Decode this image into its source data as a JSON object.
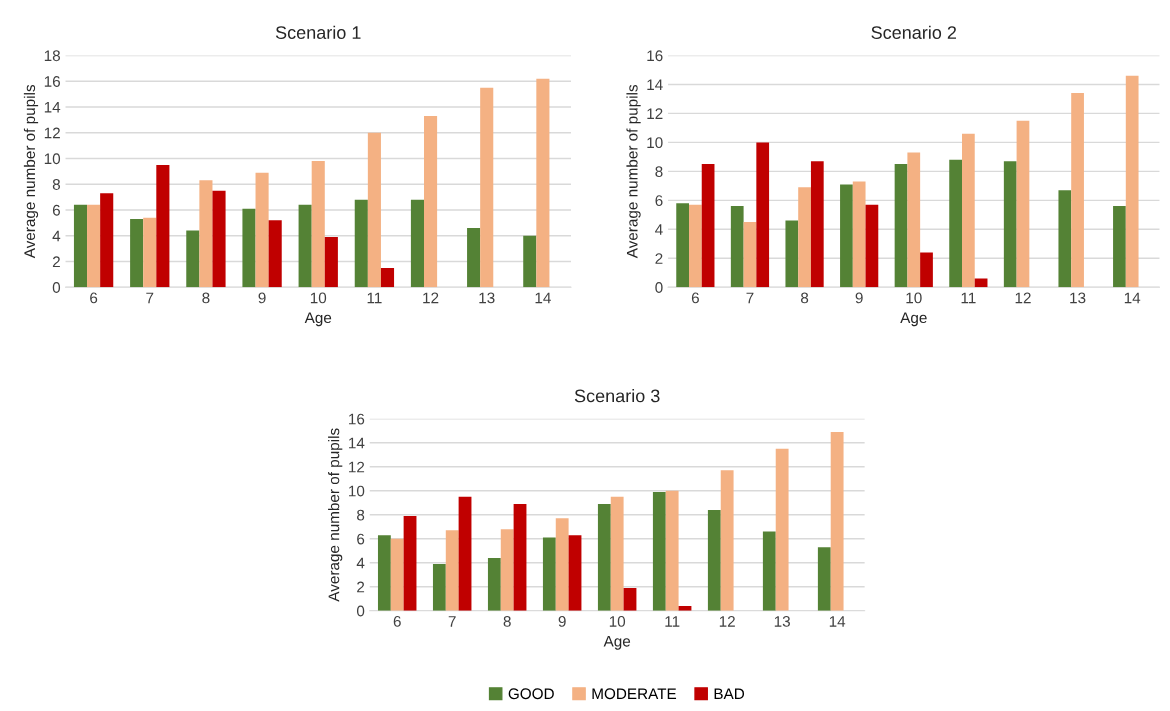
{
  "chart_data": [
    {
      "type": "bar",
      "title": "Scenario 1",
      "xlabel": "Age",
      "ylabel": "Average number of pupils",
      "categories": [
        "6",
        "7",
        "8",
        "9",
        "10",
        "11",
        "12",
        "13",
        "14"
      ],
      "ylim": [
        0,
        18
      ],
      "yticks": [
        0,
        2,
        4,
        6,
        8,
        10,
        12,
        14,
        16,
        18
      ],
      "grid": "y",
      "series": [
        {
          "color": "#548235",
          "values": [
            6.4,
            5.3,
            4.4,
            6.1,
            6.4,
            6.8,
            6.8,
            4.6,
            4.0
          ]
        },
        {
          "color": "#f4b183",
          "values": [
            6.4,
            5.4,
            8.3,
            8.9,
            9.8,
            12.0,
            13.3,
            15.5,
            16.2
          ]
        },
        {
          "color": "#c00000",
          "values": [
            7.3,
            9.5,
            7.5,
            5.2,
            3.9,
            1.5,
            null,
            null,
            null
          ]
        }
      ]
    },
    {
      "type": "bar",
      "title": "Scenario 2",
      "xlabel": "Age",
      "ylabel": "Average number of pupils",
      "categories": [
        "6",
        "7",
        "8",
        "9",
        "10",
        "11",
        "12",
        "13",
        "14"
      ],
      "ylim": [
        0,
        16
      ],
      "yticks": [
        0,
        2,
        4,
        6,
        8,
        10,
        12,
        14,
        16
      ],
      "grid": "y",
      "series": [
        {
          "color": "#548235",
          "values": [
            5.8,
            5.6,
            4.6,
            7.1,
            8.5,
            8.8,
            8.7,
            6.7,
            5.6
          ]
        },
        {
          "color": "#f4b183",
          "values": [
            5.7,
            4.5,
            6.9,
            7.3,
            9.3,
            10.6,
            11.5,
            13.4,
            14.6
          ]
        },
        {
          "color": "#c00000",
          "values": [
            8.5,
            10.0,
            8.7,
            5.7,
            2.4,
            0.6,
            null,
            null,
            null
          ]
        }
      ]
    },
    {
      "type": "bar",
      "title": "Scenario 3",
      "xlabel": "Age",
      "ylabel": "Average number of pupils",
      "categories": [
        "6",
        "7",
        "8",
        "9",
        "10",
        "11",
        "12",
        "13",
        "14"
      ],
      "ylim": [
        0,
        16
      ],
      "yticks": [
        0,
        2,
        4,
        6,
        8,
        10,
        12,
        14,
        16
      ],
      "grid": "y",
      "legend": "bottom",
      "series": [
        {
          "name": "GOOD",
          "color": "#548235",
          "values": [
            6.3,
            3.9,
            4.4,
            6.1,
            8.9,
            9.9,
            8.4,
            6.6,
            5.3
          ]
        },
        {
          "name": "MODERATE",
          "color": "#f4b183",
          "values": [
            6.0,
            6.7,
            6.8,
            7.7,
            9.5,
            10.0,
            11.7,
            13.5,
            14.9
          ]
        },
        {
          "name": "BAD",
          "color": "#c00000",
          "values": [
            7.9,
            9.5,
            8.9,
            6.3,
            1.9,
            0.4,
            null,
            null,
            null
          ]
        }
      ]
    }
  ]
}
